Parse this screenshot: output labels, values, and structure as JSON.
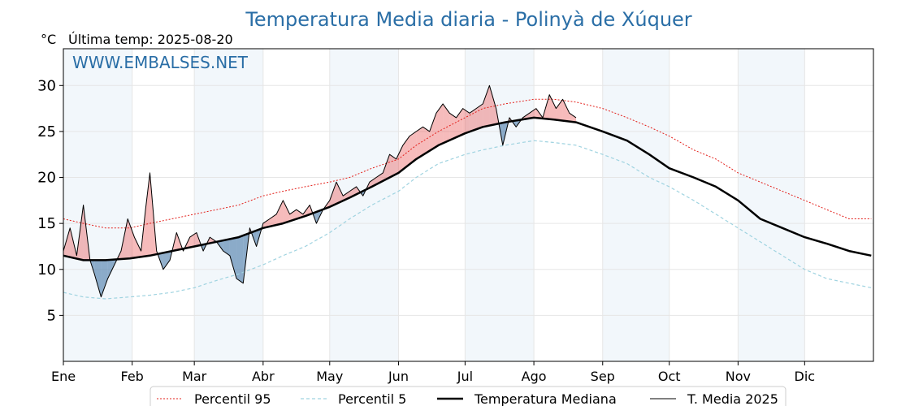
{
  "chart_data": {
    "type": "line",
    "title": "Temperatura Media diaria - Polinyà de Xúquer",
    "unit_label": "°C",
    "last_temp_label": "Última temp: 2025-08-20",
    "watermark": "WWW.EMBALSES.NET",
    "ylim": [
      0,
      34
    ],
    "yticks": [
      5,
      10,
      15,
      20,
      25,
      30
    ],
    "grid": true,
    "legend_position": "bottom",
    "months": [
      "Ene",
      "Feb",
      "Mar",
      "Abr",
      "May",
      "Jun",
      "Jul",
      "Ago",
      "Sep",
      "Oct",
      "Nov",
      "Dic"
    ],
    "x_unit": "day of year",
    "series": [
      {
        "name": "Percentil 95",
        "color": "#e3201b",
        "style": "dotted",
        "x": [
          1,
          10,
          20,
          31,
          40,
          50,
          60,
          70,
          80,
          91,
          100,
          110,
          121,
          130,
          140,
          152,
          160,
          170,
          182,
          190,
          200,
          213,
          222,
          232,
          244,
          255,
          265,
          274,
          285,
          295,
          305,
          315,
          325,
          335,
          345,
          355,
          365
        ],
        "values": [
          15.5,
          15.0,
          14.5,
          14.5,
          15.0,
          15.5,
          16.0,
          16.5,
          17.0,
          18.0,
          18.5,
          19.0,
          19.5,
          20.0,
          21.0,
          22.0,
          23.5,
          25.0,
          26.5,
          27.5,
          28.0,
          28.5,
          28.5,
          28.2,
          27.5,
          26.5,
          25.5,
          24.5,
          23.0,
          22.0,
          20.5,
          19.5,
          18.5,
          17.5,
          16.5,
          15.5,
          15.5
        ]
      },
      {
        "name": "Percentil 5",
        "color": "#9fd3e0",
        "style": "dashed",
        "x": [
          1,
          10,
          20,
          31,
          40,
          50,
          60,
          70,
          80,
          91,
          100,
          110,
          121,
          130,
          140,
          152,
          160,
          170,
          182,
          190,
          200,
          213,
          222,
          232,
          244,
          255,
          265,
          274,
          285,
          295,
          305,
          315,
          325,
          335,
          345,
          355,
          365
        ],
        "values": [
          7.5,
          7.0,
          6.8,
          7.0,
          7.2,
          7.5,
          8.0,
          8.8,
          9.5,
          10.5,
          11.5,
          12.5,
          14.0,
          15.5,
          17.0,
          18.5,
          20.0,
          21.5,
          22.5,
          23.0,
          23.5,
          24.0,
          23.8,
          23.5,
          22.5,
          21.5,
          20.0,
          19.0,
          17.5,
          16.0,
          14.5,
          13.0,
          11.5,
          10.0,
          9.0,
          8.5,
          8.0
        ]
      },
      {
        "name": "Temperatura Mediana",
        "color": "#000000",
        "style": "solid-thick",
        "x": [
          1,
          10,
          20,
          31,
          40,
          50,
          60,
          70,
          80,
          91,
          100,
          110,
          121,
          130,
          140,
          152,
          160,
          170,
          182,
          190,
          200,
          213,
          222,
          232,
          244,
          255,
          265,
          274,
          285,
          295,
          305,
          315,
          325,
          335,
          345,
          355,
          365
        ],
        "values": [
          11.5,
          11.0,
          11.0,
          11.2,
          11.5,
          12.0,
          12.5,
          13.0,
          13.5,
          14.5,
          15.0,
          15.8,
          16.8,
          17.8,
          19.0,
          20.5,
          22.0,
          23.5,
          24.8,
          25.5,
          26.0,
          26.5,
          26.3,
          26.0,
          25.0,
          24.0,
          22.5,
          21.0,
          20.0,
          19.0,
          17.5,
          15.5,
          14.5,
          13.5,
          12.8,
          12.0,
          11.5
        ]
      },
      {
        "name": "T. Media 2025",
        "color": "#000000",
        "style": "solid-thin",
        "x": [
          1,
          4,
          7,
          10,
          13,
          15,
          18,
          21,
          24,
          27,
          30,
          33,
          36,
          38,
          40,
          43,
          46,
          49,
          52,
          55,
          58,
          61,
          64,
          67,
          70,
          73,
          76,
          79,
          82,
          85,
          88,
          91,
          94,
          97,
          100,
          103,
          106,
          109,
          112,
          115,
          118,
          121,
          124,
          127,
          130,
          133,
          136,
          139,
          142,
          145,
          148,
          151,
          154,
          157,
          160,
          163,
          166,
          169,
          172,
          175,
          178,
          181,
          184,
          187,
          190,
          193,
          196,
          199,
          202,
          205,
          208,
          211,
          214,
          217,
          220,
          223,
          226,
          229,
          232
        ],
        "values": [
          12.0,
          14.5,
          11.5,
          17.0,
          11.0,
          9.5,
          7.0,
          9.0,
          10.5,
          12.0,
          15.5,
          13.5,
          12.0,
          16.5,
          20.5,
          12.0,
          10.0,
          11.0,
          14.0,
          12.0,
          13.5,
          14.0,
          12.0,
          13.5,
          13.0,
          12.0,
          11.5,
          9.0,
          8.5,
          14.5,
          12.5,
          15.0,
          15.5,
          16.0,
          17.5,
          16.0,
          16.5,
          16.0,
          17.0,
          15.0,
          16.5,
          17.5,
          19.5,
          18.0,
          18.5,
          19.0,
          18.0,
          19.5,
          20.0,
          20.5,
          22.5,
          22.0,
          23.5,
          24.5,
          25.0,
          25.5,
          25.0,
          27.0,
          28.0,
          27.0,
          26.5,
          27.5,
          27.0,
          27.5,
          28.0,
          30.0,
          27.5,
          23.5,
          26.5,
          25.5,
          26.5,
          27.0,
          27.5,
          26.5,
          29.0,
          27.5,
          28.5,
          27.0,
          26.5
        ]
      }
    ]
  }
}
